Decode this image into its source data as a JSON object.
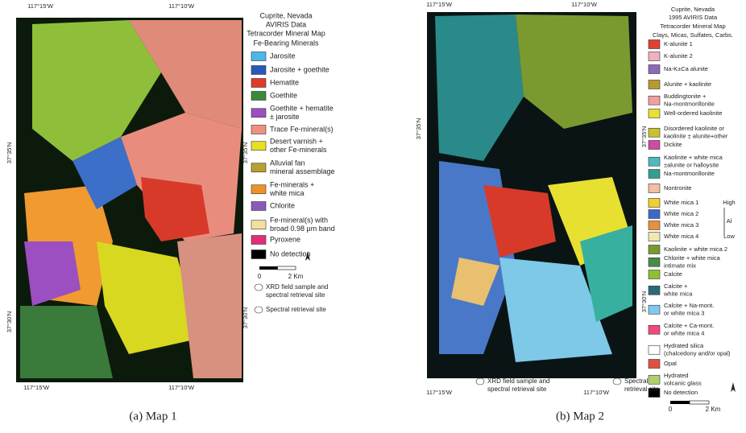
{
  "panels": [
    {
      "caption": "(a) Map 1",
      "coords": [
        "117°15'W",
        "117°10'W",
        "117°15'W",
        "117°10'W",
        "37°35'N",
        "37°30'N",
        "37°35'N",
        "37°30'N"
      ],
      "legend_title": [
        "Cuprite, Nevada",
        "AVIRIS Data",
        "Tetracorder Mineral Map",
        "Fe-Bearing Minerals"
      ],
      "legend": [
        {
          "color": "#4ab8e8",
          "lines": [
            "Jarosite"
          ]
        },
        {
          "color": "#2a58b8",
          "lines": [
            "Jarosite + goethite"
          ]
        },
        {
          "color": "#e03a2a",
          "lines": [
            "Hematite"
          ]
        },
        {
          "color": "#3a8a3a",
          "lines": [
            "Goethite"
          ]
        },
        {
          "color": "#9b4fc0",
          "lines": [
            "Goethite + hematite",
            "± jarosite"
          ]
        },
        {
          "color": "#f09080",
          "lines": [
            "Trace Fe-mineral(s)"
          ]
        },
        {
          "color": "#e8e020",
          "lines": [
            "Desert varnish +",
            "other Fe-minerals"
          ]
        },
        {
          "color": "#b8a030",
          "lines": [
            "Alluvial fan",
            "mineral assemblage"
          ]
        },
        {
          "color": "#f0922a",
          "lines": [
            "Fe-minerals +",
            "white mica"
          ]
        },
        {
          "color": "#8a5ab8",
          "lines": [
            "Chlorite"
          ]
        },
        {
          "color": "#f5dfa0",
          "lines": [
            "Fe-mineral(s) with",
            "broad 0.98 μm band"
          ]
        },
        {
          "color": "#e0307a",
          "lines": [
            "Pyroxene"
          ]
        },
        {
          "color": "#000000",
          "lines": [
            "No detection"
          ]
        }
      ],
      "scale": [
        "0",
        "2 Km"
      ],
      "notes": [
        [
          "XRD field sample and",
          "spectral retrieval site"
        ],
        [
          "Spectral retrieval site"
        ]
      ]
    },
    {
      "caption": "(b) Map 2",
      "coords": [
        "117°15'W",
        "117°10'W",
        "117°15'W",
        "117°10'W",
        "37°35'N",
        "37°35'N",
        "37°30'N"
      ],
      "legend_title": [
        "Cuprite, Nevada",
        "1995 AVIRIS Data",
        "Tetracorder Mineral Map",
        "Clays, Micas, Sulfates, Carbs."
      ],
      "legend": [
        {
          "color": "#e04030",
          "lines": [
            "K-alunite 1"
          ]
        },
        {
          "color": "#f0b0c0",
          "lines": [
            "K-alunite 2"
          ]
        },
        {
          "color": "#8a6ab8",
          "lines": [
            "Na-K±Ca alunite"
          ]
        },
        {
          "color": "#b89a30",
          "lines": [
            "Alunite + kaolinite"
          ]
        },
        {
          "color": "#f0a0a0",
          "lines": [
            "Buddingtonite +",
            "Na-montmorillonite"
          ]
        },
        {
          "color": "#e8e030",
          "lines": [
            "Well-ordered kaolinite"
          ]
        },
        {
          "color": "#c8c030",
          "lines": [
            "Disordered kaolinite or",
            "kaolinite ± alunite+other"
          ]
        },
        {
          "color": "#d04aa0",
          "lines": [
            "Dickite"
          ]
        },
        {
          "color": "#50b8c0",
          "lines": [
            "Kaolinite + white mica",
            "±alunite or halloysite"
          ]
        },
        {
          "color": "#30a090",
          "lines": [
            "Na-montmorillonite"
          ]
        },
        {
          "color": "#f0c0a0",
          "lines": [
            "Nontronite"
          ]
        },
        {
          "color": "#f0d030",
          "lines": [
            "White mica 1"
          ]
        },
        {
          "color": "#3a6ac8",
          "lines": [
            "White mica 2"
          ]
        },
        {
          "color": "#e89040",
          "lines": [
            "White mica 3"
          ]
        },
        {
          "color": "#f0e8b0",
          "lines": [
            "White mica 4"
          ]
        },
        {
          "color": "#7a9a30",
          "lines": [
            "Kaolinite + white mica 2"
          ]
        },
        {
          "color": "#4a8a4a",
          "lines": [
            "Chlorite + white mica",
            "intimate mix"
          ]
        },
        {
          "color": "#90c030",
          "lines": [
            "Calcite"
          ]
        },
        {
          "color": "#2a6a7a",
          "lines": [
            "Calcite +",
            "white mica"
          ]
        },
        {
          "color": "#80c8f0",
          "lines": [
            "Calcite + Na-mont.",
            "or white mica 3"
          ]
        },
        {
          "color": "#f04a7a",
          "lines": [
            "Calcite + Ca-mont.",
            "or white mica 4"
          ]
        },
        {
          "color": "#ffffff",
          "lines": [
            "Hydrated silica",
            "(chalcedony and/or opal)"
          ]
        },
        {
          "color": "#e05040",
          "lines": [
            "Opal"
          ]
        },
        {
          "color": "#b0d070",
          "lines": [
            "Hydrated",
            "volcanic glass"
          ]
        },
        {
          "color": "#000000",
          "lines": [
            "No detection"
          ]
        }
      ],
      "al_scale": [
        "High",
        "Al",
        "Low"
      ],
      "scale": [
        "0",
        "2 Km"
      ],
      "notes": [
        [
          "XRD field sample and",
          "spectral retrieval site"
        ],
        [
          "Spectral",
          "retrieval site"
        ]
      ]
    }
  ]
}
